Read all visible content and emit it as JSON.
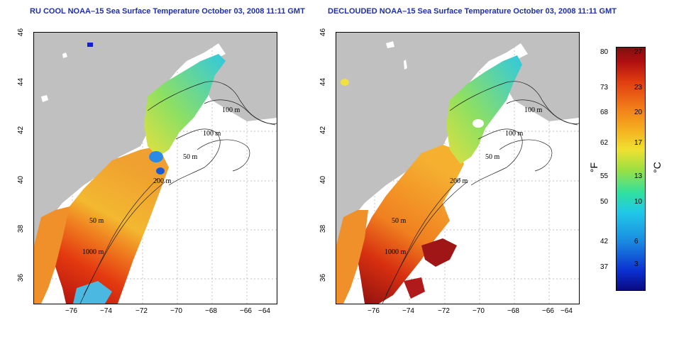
{
  "panels": [
    {
      "title": "RU COOL NOAA–15 Sea Surface Temperature October 03, 2008 11:11 GMT"
    },
    {
      "title": "DECLOUDED NOAA–15 Sea Surface Temperature October 03, 2008 11:11 GMT"
    }
  ],
  "axes": {
    "x_ticks": [
      "−76",
      "−74",
      "−72",
      "−70",
      "−68",
      "−66",
      "−64"
    ],
    "y_ticks": [
      "46",
      "44",
      "42",
      "40",
      "38",
      "36"
    ]
  },
  "contour_labels": [
    "100 m",
    "100 m",
    "50 m",
    "200 m",
    "50 m",
    "1000 m"
  ],
  "colorbar": {
    "fahrenheit_ticks": [
      "80",
      "73",
      "68",
      "62",
      "55",
      "50",
      "42",
      "37"
    ],
    "celsius_ticks": [
      "27",
      "23",
      "20",
      "17",
      "13",
      "10",
      "6",
      "3"
    ],
    "f_unit": "°F",
    "c_unit": "°C"
  },
  "colors": {
    "land": "#c0c0c0",
    "title": "#1f2fa8"
  }
}
